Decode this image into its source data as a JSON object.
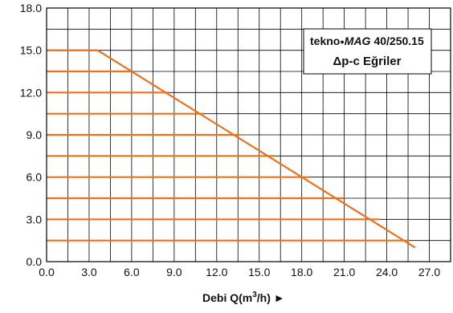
{
  "chart_data": {
    "type": "line",
    "title_brand": "tekno",
    "title_model_italic": "MAG",
    "title_model": "40/250.15",
    "subtitle": "Δp-c Eğriler",
    "xlabel_prefix": "Debi Q(m",
    "xlabel_sup": "3",
    "xlabel_suffix": "/h) ►",
    "ylabel": "",
    "xlim": [
      0,
      28.5
    ],
    "ylim": [
      0,
      18
    ],
    "x_ticks": [
      "0.0",
      "3.0",
      "6.0",
      "9.0",
      "12.0",
      "15.0",
      "18.0",
      "21.0",
      "24.0",
      "27.0"
    ],
    "y_ticks": [
      "0.0",
      "3.0",
      "6.0",
      "9.0",
      "12.0",
      "15.0",
      "18.0"
    ],
    "grid": true,
    "colors": {
      "curve": "#e8731e",
      "grid": "#000000"
    },
    "envelope": {
      "x": [
        0,
        3.6,
        26.0
      ],
      "y": [
        15.0,
        15.0,
        1.0
      ]
    },
    "series": [
      {
        "y": 15.0,
        "x_start": 0,
        "x_end": 3.6
      },
      {
        "y": 13.5,
        "x_start": 0,
        "x_end": 6.1
      },
      {
        "y": 12.0,
        "x_start": 0,
        "x_end": 8.6
      },
      {
        "y": 10.5,
        "x_start": 0,
        "x_end": 11.1
      },
      {
        "y": 9.0,
        "x_start": 0,
        "x_end": 13.6
      },
      {
        "y": 7.5,
        "x_start": 0,
        "x_end": 16.1
      },
      {
        "y": 6.0,
        "x_start": 0,
        "x_end": 18.5
      },
      {
        "y": 4.5,
        "x_start": 0,
        "x_end": 21.0
      },
      {
        "y": 3.0,
        "x_start": 0,
        "x_end": 23.5
      },
      {
        "y": 1.5,
        "x_start": 0,
        "x_end": 25.6
      }
    ]
  }
}
